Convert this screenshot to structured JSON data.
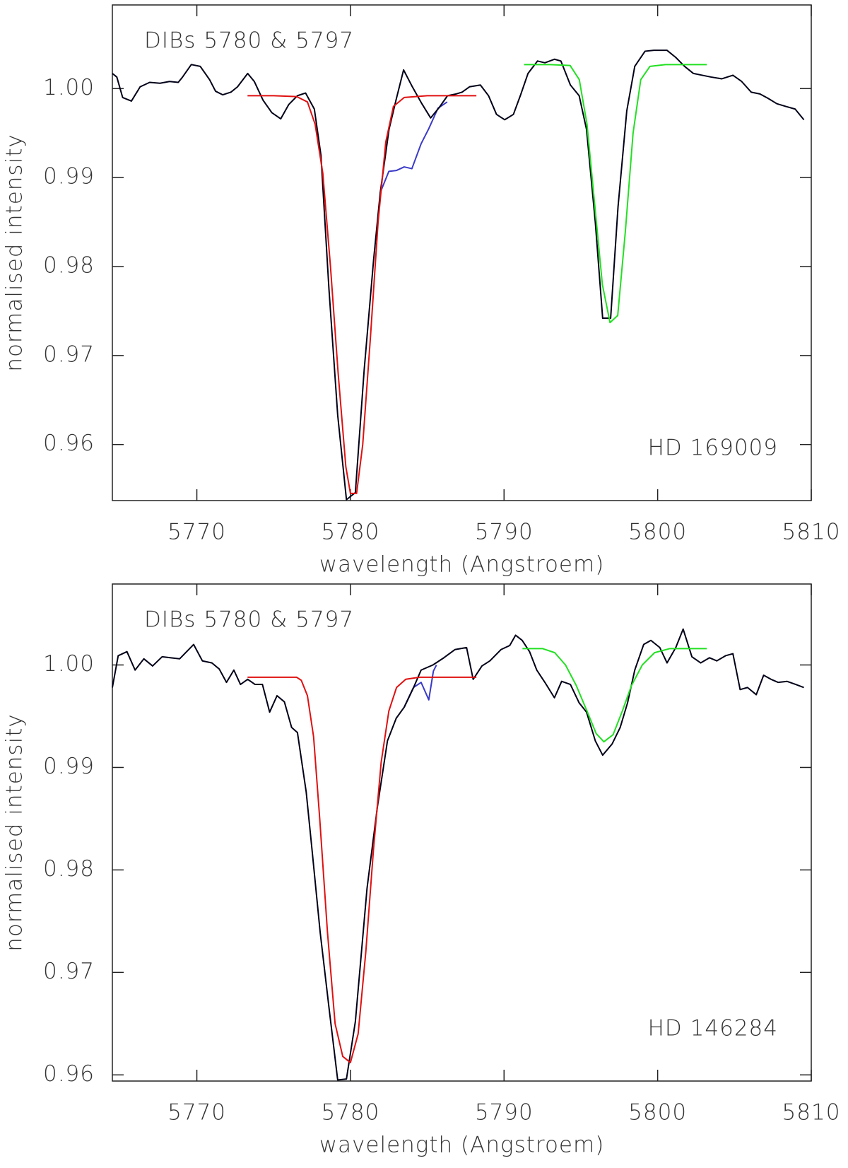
{
  "chart_data": [
    {
      "type": "line",
      "title": "DIBs 5780 & 5797",
      "annotation": "HD  169009",
      "x_label": "wavelength (Angstroem)",
      "y_label": "normalised intensity",
      "xlim": [
        5764.5,
        5810
      ],
      "ylim": [
        0.9537,
        1.0094
      ],
      "xticks": [
        5770,
        5780,
        5790,
        5800,
        5810
      ],
      "yticks": [
        0.96,
        0.97,
        0.98,
        0.99,
        {
          "value": 1,
          "label": "1.00"
        }
      ],
      "series": [
        {
          "color": "#3a3ac8",
          "x": [
            5781.94,
            5782.5,
            5783.0,
            5783.5,
            5784.0,
            5784.6,
            5785.1,
            5785.7,
            5786.3
          ],
          "values": [
            0.9883,
            0.9907,
            0.9908,
            0.9912,
            0.991,
            0.9938,
            0.9955,
            0.9978,
            0.9985
          ]
        },
        {
          "color": "#000018",
          "x": [
            5764.5,
            5764.79,
            5765.17,
            5765.74,
            5766.31,
            5766.93,
            5767.6,
            5768.22,
            5768.79,
            5769.07,
            5769.64,
            5770.22,
            5770.83,
            5771.22,
            5771.69,
            5772.22,
            5772.65,
            5773.31,
            5773.74,
            5774.31,
            5774.88,
            5775.46,
            5775.98,
            5776.55,
            5777.08,
            5777.65,
            5778.08,
            5778.6,
            5779.17,
            5779.74,
            5780.32,
            5780.89,
            5781.51,
            5781.94,
            5782.51,
            5782.98,
            5783.46,
            5784.03,
            5784.65,
            5785.22,
            5785.79,
            5786.32,
            5786.89,
            5787.27,
            5787.75,
            5788.46,
            5788.99,
            5789.51,
            5790.04,
            5790.61,
            5791.08,
            5791.56,
            5792.18,
            5792.66,
            5793.28,
            5793.7,
            5794.32,
            5794.89,
            5795.37,
            5795.94,
            5796.42,
            5796.94,
            5797.42,
            5797.99,
            5798.51,
            5799.18,
            5799.75,
            5800.61,
            5801.18,
            5801.75,
            5802.33,
            5802.9,
            5803.47,
            5804.18,
            5804.9,
            5805.47,
            5806.09,
            5806.66,
            5807.19,
            5807.76,
            5808.33,
            5808.95,
            5809.52
          ],
          "values": [
            1.0017,
            1.0013,
            0.999,
            0.9986,
            1.0002,
            1.0007,
            1.0006,
            1.0008,
            1.0007,
            1.0013,
            1.0027,
            1.0025,
            1.001,
            0.9997,
            0.9993,
            0.9996,
            1.0002,
            1.0017,
            1.0008,
            0.9987,
            0.9973,
            0.9966,
            0.9982,
            0.9992,
            0.9995,
            0.9977,
            0.9925,
            0.9775,
            0.9633,
            0.9538,
            0.9546,
            0.9683,
            0.9808,
            0.9883,
            0.9954,
            0.9988,
            1.0021,
            1.0002,
            0.9983,
            0.9967,
            0.9979,
            0.9992,
            0.9994,
            0.9996,
            1.0002,
            1.0004,
            0.9992,
            0.9971,
            0.9965,
            0.9971,
            0.9993,
            1.0017,
            1.0031,
            1.0029,
            1.0033,
            1.0031,
            1.0004,
            0.9992,
            0.9954,
            0.985,
            0.9742,
            0.9742,
            0.9867,
            0.9975,
            1.0025,
            1.0042,
            1.0043,
            1.0043,
            1.0035,
            1.0025,
            1.0017,
            1.0015,
            1.0013,
            1.0011,
            1.0015,
            1.0008,
            0.9996,
            0.9994,
            0.9989,
            0.9983,
            0.998,
            0.9977,
            0.9965
          ]
        },
        {
          "color": "#e01010",
          "x": [
            5773.3,
            5775,
            5776.5,
            5777.2,
            5777.7,
            5778.2,
            5778.7,
            5779.2,
            5779.7,
            5780.0,
            5780.4,
            5780.8,
            5781.3,
            5781.8,
            5782.3,
            5782.8,
            5783.5,
            5785,
            5788.2
          ],
          "values": [
            0.9992,
            0.9992,
            0.9991,
            0.9985,
            0.996,
            0.9905,
            0.98,
            0.968,
            0.9575,
            0.9545,
            0.9545,
            0.96,
            0.972,
            0.985,
            0.994,
            0.998,
            0.999,
            0.9992,
            0.9992
          ]
        },
        {
          "color": "#22e022",
          "x": [
            5791.3,
            5793,
            5794.3,
            5794.9,
            5795.4,
            5795.9,
            5796.4,
            5796.9,
            5797.4,
            5797.9,
            5798.4,
            5798.9,
            5799.5,
            5800.5,
            5803.2
          ],
          "values": [
            1.0027,
            1.0027,
            1.0026,
            1.001,
            0.996,
            0.987,
            0.978,
            0.9737,
            0.9745,
            0.984,
            0.995,
            1.001,
            1.0025,
            1.0027,
            1.0027
          ]
        }
      ]
    },
    {
      "type": "line",
      "title": "DIBs 5780 & 5797",
      "annotation": "HD  146284",
      "x_label": "wavelength (Angstroem)",
      "y_label": "normalised intensity",
      "xlim": [
        5764.5,
        5810
      ],
      "ylim": [
        0.9594,
        1.0079
      ],
      "xticks": [
        5770,
        5780,
        5790,
        5800,
        5810
      ],
      "yticks": [
        0.96,
        0.97,
        0.98,
        0.99,
        {
          "value": 1,
          "label": "1.00"
        }
      ],
      "series": [
        {
          "color": "#3a3ac8",
          "x": [
            5783.5,
            5784.1,
            5784.6,
            5785.1,
            5785.4,
            5785.6
          ],
          "values": [
            0.9959,
            0.9978,
            0.9983,
            0.9966,
            0.9994,
            1.0
          ]
        },
        {
          "color": "#000018",
          "x": [
            5764.5,
            5764.88,
            5765.45,
            5765.98,
            5766.55,
            5767.12,
            5767.74,
            5768.31,
            5768.88,
            5769.79,
            5770.36,
            5770.98,
            5771.46,
            5771.93,
            5772.41,
            5772.84,
            5773.31,
            5773.79,
            5774.27,
            5774.74,
            5775.22,
            5775.7,
            5776.17,
            5776.55,
            5777.12,
            5777.51,
            5778.03,
            5778.6,
            5779.17,
            5779.74,
            5780.32,
            5781.08,
            5781.75,
            5782.41,
            5782.98,
            5783.51,
            5784.08,
            5784.6,
            5785.37,
            5786.08,
            5786.8,
            5787.56,
            5787.99,
            5788.56,
            5789.08,
            5789.8,
            5790.37,
            5790.75,
            5791.18,
            5791.66,
            5792.13,
            5792.66,
            5793.28,
            5793.75,
            5794.32,
            5794.89,
            5795.37,
            5795.94,
            5796.42,
            5797.04,
            5797.56,
            5798.04,
            5798.51,
            5799.09,
            5799.56,
            5800.14,
            5800.61,
            5801.18,
            5801.66,
            5802.23,
            5802.8,
            5803.37,
            5803.85,
            5804.42,
            5804.9,
            5805.37,
            5805.85,
            5806.42,
            5806.9,
            5807.38,
            5807.85,
            5808.42,
            5808.99,
            5809.52
          ],
          "values": [
            0.9978,
            1.0009,
            1.0013,
            0.9995,
            1.0006,
            0.9999,
            1.0008,
            1.0007,
            1.0006,
            1.002,
            1.0004,
            1.0002,
            0.9996,
            0.9983,
            0.9995,
            0.9981,
            0.9986,
            0.9981,
            0.9981,
            0.9954,
            0.997,
            0.9964,
            0.9939,
            0.9934,
            0.9876,
            0.9818,
            0.9739,
            0.9666,
            0.9595,
            0.9596,
            0.9652,
            0.9782,
            0.9861,
            0.9926,
            0.9948,
            0.9959,
            0.9977,
            0.9995,
            1.0,
            1.0007,
            1.0015,
            1.0017,
            0.9986,
            0.9999,
            1.0004,
            1.0015,
            1.0019,
            1.0029,
            1.0024,
            1.0013,
            0.9995,
            0.9983,
            0.9968,
            0.9984,
            0.9981,
            0.9963,
            0.9954,
            0.9926,
            0.9912,
            0.9923,
            0.9939,
            0.9963,
            0.9995,
            1.002,
            1.0024,
            1.0017,
            1.0002,
            1.0017,
            1.0035,
            1.0008,
            1.0002,
            1.0007,
            1.0004,
            1.0009,
            1.0011,
            0.9976,
            0.9978,
            0.9971,
            0.999,
            0.9986,
            0.9983,
            0.9984,
            0.9981,
            0.9978
          ]
        },
        {
          "color": "#e01010",
          "x": [
            5773.3,
            5775,
            5776.5,
            5776.8,
            5777.2,
            5777.6,
            5778.0,
            5778.5,
            5779.0,
            5779.5,
            5780.0,
            5780.5,
            5781.0,
            5781.5,
            5782.0,
            5782.5,
            5783.0,
            5783.6,
            5784.5,
            5788.2
          ],
          "values": [
            0.9988,
            0.9988,
            0.9988,
            0.9985,
            0.997,
            0.993,
            0.985,
            0.974,
            0.965,
            0.9618,
            0.9612,
            0.964,
            0.972,
            0.982,
            0.9905,
            0.9955,
            0.9978,
            0.9986,
            0.9988,
            0.9988
          ]
        },
        {
          "color": "#22e022",
          "x": [
            5791.2,
            5792.5,
            5793.3,
            5794.0,
            5794.7,
            5795.4,
            5796.0,
            5796.5,
            5797.1,
            5797.7,
            5798.3,
            5799.0,
            5799.8,
            5800.8,
            5803.2
          ],
          "values": [
            1.0016,
            1.0016,
            1.0012,
            1.0,
            0.998,
            0.9955,
            0.9933,
            0.9925,
            0.9932,
            0.9955,
            0.998,
            1.0,
            1.0012,
            1.0016,
            1.0016
          ]
        }
      ]
    }
  ]
}
